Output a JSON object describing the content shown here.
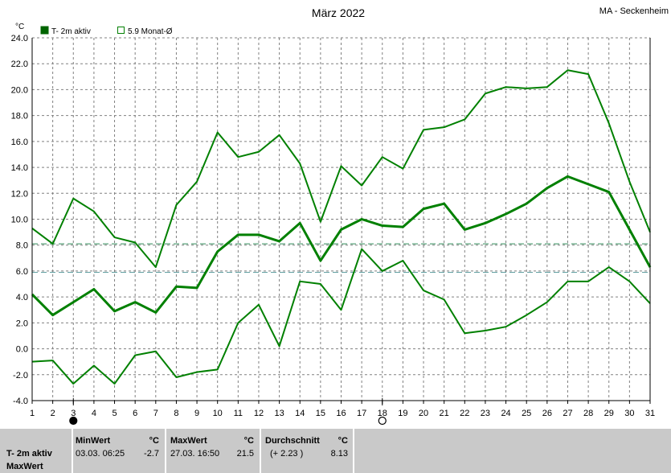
{
  "chart_data": {
    "type": "line",
    "title": "März 2022",
    "station": "MA - Seckenheim",
    "yunit": "°C",
    "ylim": [
      -4.0,
      24.0
    ],
    "yticks": [
      "-4.0",
      "-2.0",
      "0.0",
      "2.0",
      "4.0",
      "6.0",
      "8.0",
      "10.0",
      "12.0",
      "14.0",
      "16.0",
      "18.0",
      "20.0",
      "22.0",
      "24.0"
    ],
    "x": [
      1,
      2,
      3,
      4,
      5,
      6,
      7,
      8,
      9,
      10,
      11,
      12,
      13,
      14,
      15,
      16,
      17,
      18,
      19,
      20,
      21,
      22,
      23,
      24,
      25,
      26,
      27,
      28,
      29,
      30,
      31
    ],
    "xticks": [
      "1",
      "2",
      "3",
      "4",
      "5",
      "6",
      "7",
      "8",
      "9",
      "10",
      "11",
      "12",
      "13",
      "14",
      "15",
      "16",
      "17",
      "18",
      "19",
      "20",
      "21",
      "22",
      "23",
      "24",
      "25",
      "26",
      "27",
      "28",
      "29",
      "30",
      "31"
    ],
    "legend": [
      {
        "label": "T- 2m aktiv",
        "filled": true
      },
      {
        "label": "5.9 Monat-Ø",
        "filled": false
      }
    ],
    "series": [
      {
        "role": "max",
        "values": [
          9.3,
          8.1,
          11.6,
          10.6,
          8.6,
          8.2,
          6.3,
          11.1,
          12.9,
          16.7,
          14.8,
          15.2,
          16.5,
          14.3,
          9.8,
          14.1,
          12.6,
          14.8,
          13.9,
          16.9,
          17.1,
          17.7,
          19.7,
          20.2,
          20.1,
          20.2,
          21.5,
          21.2,
          17.4,
          12.9,
          9.0
        ]
      },
      {
        "role": "mean",
        "values": [
          4.2,
          2.6,
          3.6,
          4.6,
          2.9,
          3.6,
          2.8,
          4.8,
          4.7,
          7.5,
          8.8,
          8.8,
          8.3,
          9.7,
          6.8,
          9.2,
          10.0,
          9.5,
          9.4,
          10.8,
          11.2,
          9.2,
          9.7,
          10.4,
          11.2,
          12.4,
          13.3,
          12.7,
          12.1,
          9.2,
          6.3
        ]
      },
      {
        "role": "min",
        "values": [
          -1.0,
          -0.9,
          -2.7,
          -1.3,
          -2.7,
          -0.5,
          -0.2,
          -2.2,
          -1.8,
          -1.6,
          2.0,
          3.4,
          0.2,
          5.2,
          5.0,
          3.0,
          7.7,
          6.0,
          6.8,
          4.5,
          3.8,
          1.2,
          1.4,
          1.7,
          2.6,
          3.6,
          5.2,
          5.2,
          6.3,
          5.2,
          3.5
        ]
      }
    ],
    "reference_lines": [
      8.1,
      5.9
    ],
    "markers": [
      {
        "day": 3,
        "symbol": "filled-circle"
      },
      {
        "day": 18,
        "symbol": "open-circle"
      }
    ],
    "grid": true,
    "colors": {
      "line": "#008000",
      "grid": "#808080",
      "ref1": "#2e8b57",
      "ref2": "#5f9ea0"
    }
  },
  "stats": {
    "row1": "T- 2m aktiv",
    "row2": "MaxWert",
    "min_header": "MinWert",
    "min_unit": "°C",
    "min_when": "03.03.  06:25",
    "min_value": "-2.7",
    "max_header": "MaxWert",
    "max_unit": "°C",
    "max_when": "27.03.  16:50",
    "max_value": "21.5",
    "avg_header": "Durchschnitt",
    "avg_unit": "°C",
    "avg_diff": "(+ 2.23 )",
    "avg_value": "8.13"
  }
}
